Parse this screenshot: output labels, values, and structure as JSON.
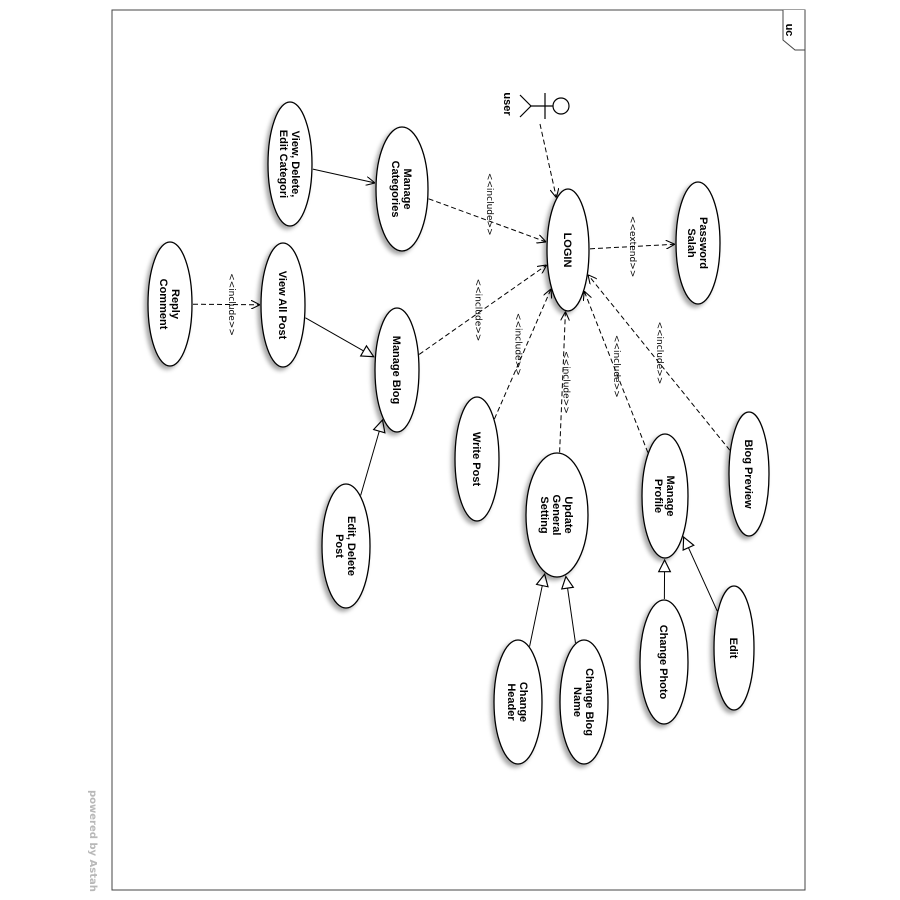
{
  "diagram": {
    "frame_tag": "uc",
    "watermark": "powered by Astah",
    "actor": {
      "id": "user",
      "label": "user"
    },
    "use_cases": [
      {
        "id": "login",
        "lines": [
          "LOGIN"
        ]
      },
      {
        "id": "password",
        "lines": [
          "Password",
          "Salah"
        ]
      },
      {
        "id": "manage_categories",
        "lines": [
          "Manage",
          "Categories"
        ]
      },
      {
        "id": "view_delete",
        "lines": [
          "View, Delete,",
          "Edit Categori"
        ]
      },
      {
        "id": "view_all_post",
        "lines": [
          "View All Post"
        ]
      },
      {
        "id": "reply_comment",
        "lines": [
          "Reply",
          "Comment"
        ]
      },
      {
        "id": "manage_blog",
        "lines": [
          "Manage Blog"
        ]
      },
      {
        "id": "edit_delete_post",
        "lines": [
          "Edit, Delete",
          "Post"
        ]
      },
      {
        "id": "write_post",
        "lines": [
          "Write Post"
        ]
      },
      {
        "id": "update_general",
        "lines": [
          "Update",
          "General",
          "Setting"
        ]
      },
      {
        "id": "change_header",
        "lines": [
          "Change",
          "Header"
        ]
      },
      {
        "id": "change_blog_name",
        "lines": [
          "Change Blog",
          "Name"
        ]
      },
      {
        "id": "manage_profile",
        "lines": [
          "Manage",
          "Profile"
        ]
      },
      {
        "id": "change_photo",
        "lines": [
          "Change Photo"
        ]
      },
      {
        "id": "edit",
        "lines": [
          "Edit"
        ]
      },
      {
        "id": "blog_preview",
        "lines": [
          "Blog Preview"
        ]
      }
    ],
    "relations": [
      {
        "type": "association",
        "from": "user",
        "to": "login"
      },
      {
        "type": "extend",
        "from": "login",
        "to": "password",
        "label": "<<extend>>"
      },
      {
        "type": "include",
        "from": "manage_categories",
        "to": "login",
        "label": "<<include>>"
      },
      {
        "type": "include",
        "from": "manage_blog",
        "to": "login",
        "label": "<<include>>"
      },
      {
        "type": "include",
        "from": "write_post",
        "to": "login",
        "label": "<<include>>"
      },
      {
        "type": "include",
        "from": "update_general",
        "to": "login",
        "label": "<<include>>"
      },
      {
        "type": "include",
        "from": "manage_profile",
        "to": "login",
        "label": "<<include>>"
      },
      {
        "type": "include",
        "from": "blog_preview",
        "to": "login",
        "label": "<<include>>"
      },
      {
        "type": "include",
        "from": "reply_comment",
        "to": "view_all_post",
        "label": "<<include>>"
      },
      {
        "type": "association",
        "from": "view_delete",
        "to": "manage_categories"
      },
      {
        "type": "generalization",
        "from": "view_all_post",
        "to": "manage_blog"
      },
      {
        "type": "generalization",
        "from": "edit_delete_post",
        "to": "manage_blog"
      },
      {
        "type": "generalization",
        "from": "change_header",
        "to": "update_general"
      },
      {
        "type": "generalization",
        "from": "change_blog_name",
        "to": "update_general"
      },
      {
        "type": "generalization",
        "from": "change_photo",
        "to": "manage_profile"
      },
      {
        "type": "generalization",
        "from": "edit",
        "to": "manage_profile"
      }
    ]
  }
}
